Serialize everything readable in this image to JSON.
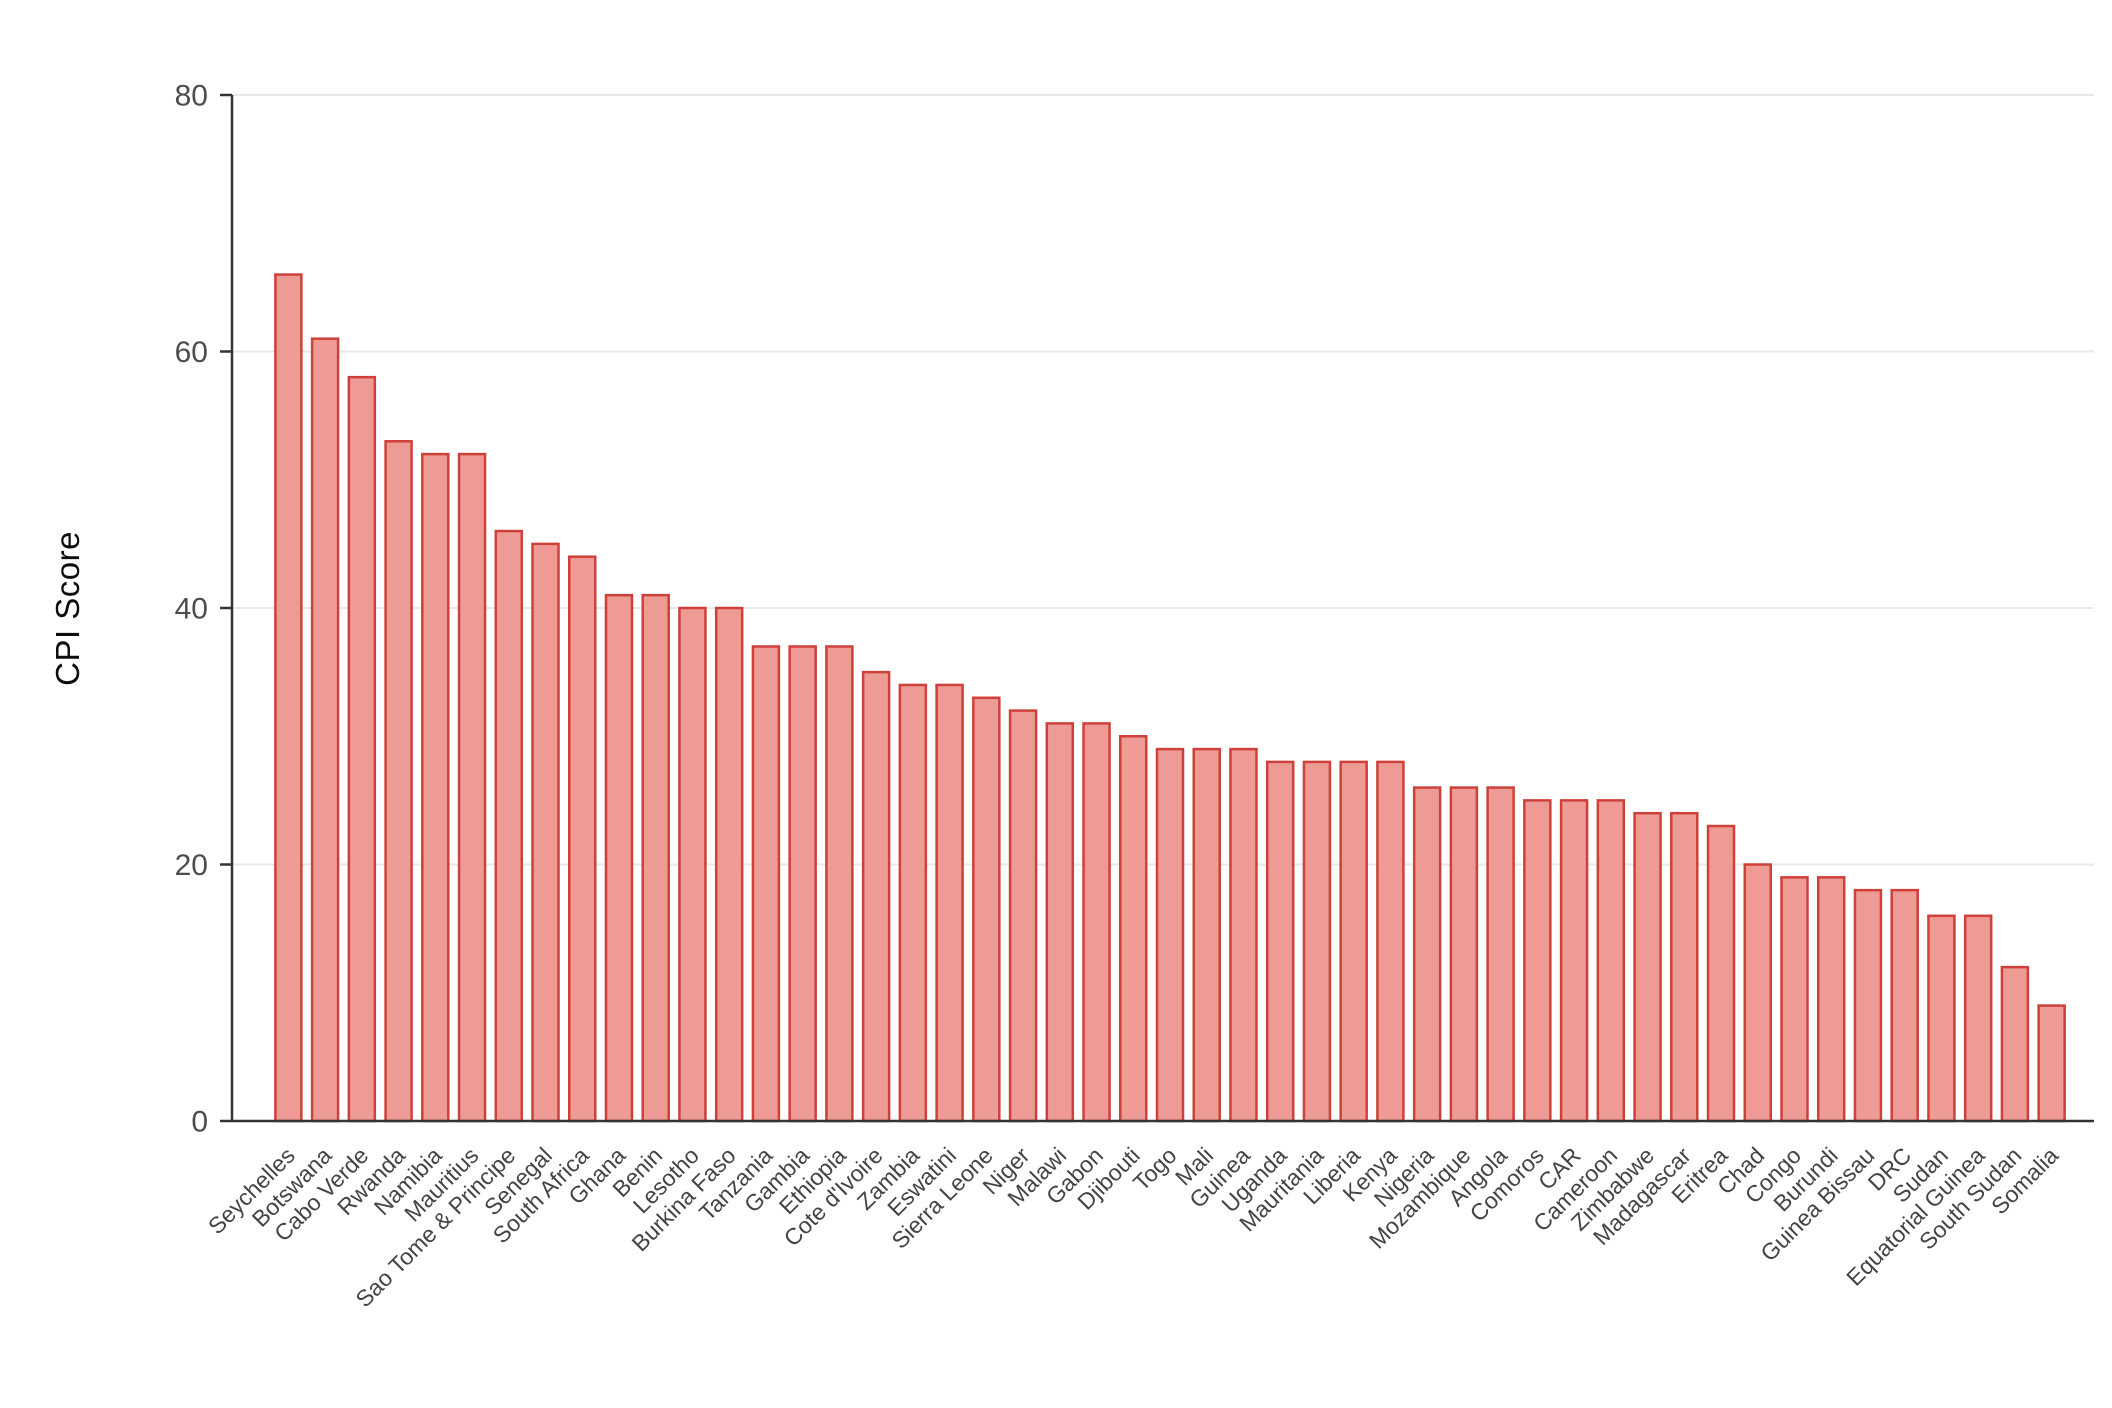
{
  "chart_data": {
    "type": "bar",
    "title": "",
    "ylabel": "CPI Score",
    "xlabel": "",
    "ylim": [
      0,
      80
    ],
    "yticks": [
      0,
      20,
      40,
      60,
      80
    ],
    "grid": "horizontal gridlines at y ticks",
    "legend_position": "none",
    "categories": [
      "Seychelles",
      "Botswana",
      "Cabo Verde",
      "Rwanda",
      "Namibia",
      "Mauritius",
      "Sao Tome & Principe",
      "Senegal",
      "South Africa",
      "Ghana",
      "Benin",
      "Lesotho",
      "Burkina Faso",
      "Tanzania",
      "Gambia",
      "Ethiopia",
      "Cote d'Ivoire",
      "Zambia",
      "Eswatini",
      "Sierra Leone",
      "Niger",
      "Malawi",
      "Gabon",
      "Djibouti",
      "Togo",
      "Mali",
      "Guinea",
      "Uganda",
      "Mauritania",
      "Liberia",
      "Kenya",
      "Nigeria",
      "Mozambique",
      "Angola",
      "Comoros",
      "CAR",
      "Cameroon",
      "Zimbabwe",
      "Madagascar",
      "Eritrea",
      "Chad",
      "Congo",
      "Burundi",
      "Guinea Bissau",
      "DRC",
      "Sudan",
      "Equatorial Guinea",
      "South Sudan",
      "Somalia"
    ],
    "values": [
      66,
      61,
      58,
      53,
      52,
      52,
      46,
      45,
      44,
      41,
      41,
      40,
      40,
      37,
      37,
      37,
      35,
      34,
      34,
      33,
      32,
      31,
      31,
      30,
      29,
      29,
      29,
      28,
      28,
      28,
      28,
      26,
      26,
      26,
      25,
      25,
      25,
      24,
      24,
      23,
      20,
      19,
      19,
      18,
      18,
      16,
      16,
      12,
      9
    ]
  },
  "style": {
    "bar_fill": "#EE9A95",
    "bar_stroke": "#CE413A",
    "grid_color": "#E9E9E9",
    "axis_color": "#333333",
    "y_tick_label_color": "#4d4d4d",
    "x_tick_label_color": "#444444",
    "background": "#FFFFFF"
  }
}
